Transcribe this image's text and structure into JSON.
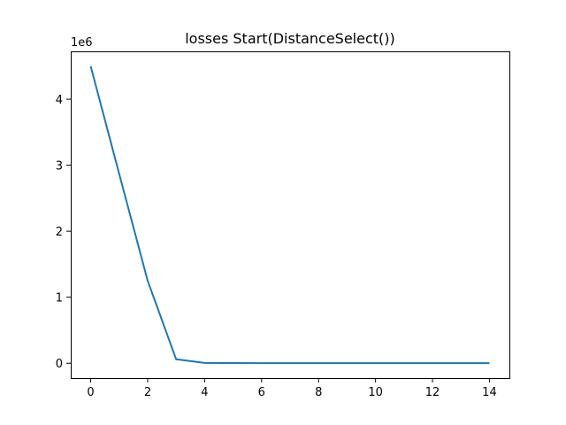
{
  "chart_data": {
    "type": "line",
    "title": "losses Start(DistanceSelect())",
    "xlabel": "",
    "ylabel": "",
    "y_offset_label": "1e6",
    "xlim": [
      -0.7,
      14.7
    ],
    "ylim": [
      -0.225,
      4.725
    ],
    "x_ticks": [
      0,
      2,
      4,
      6,
      8,
      10,
      12,
      14
    ],
    "x_tick_labels": [
      "0",
      "2",
      "4",
      "6",
      "8",
      "10",
      "12",
      "14"
    ],
    "y_ticks": [
      0,
      1,
      2,
      3,
      4
    ],
    "y_tick_labels": [
      "0",
      "1",
      "2",
      "3",
      "4"
    ],
    "grid": false,
    "series": [
      {
        "color": "#1f77b4",
        "x": [
          0,
          1,
          2,
          3,
          4,
          5,
          6,
          7,
          8,
          9,
          10,
          11,
          12,
          13,
          14
        ],
        "y": [
          4.5,
          2.87,
          1.25,
          0.06,
          0.005,
          0.003,
          0.002,
          0.002,
          0.002,
          0.002,
          0.002,
          0.002,
          0.002,
          0.002,
          0.002
        ]
      }
    ]
  }
}
